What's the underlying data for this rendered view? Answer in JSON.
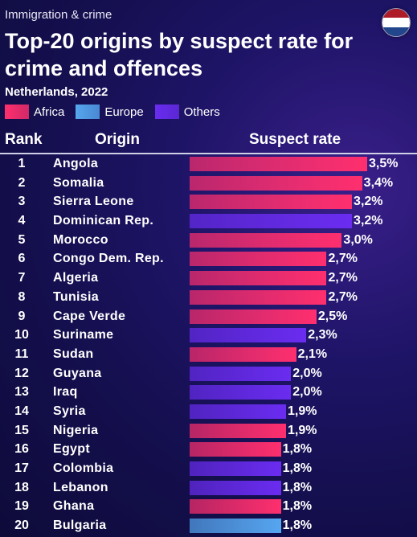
{
  "header": {
    "kicker": "Immigration & crime",
    "title": "Top-20 origins by suspect rate for crime and offences",
    "subtitle": "Netherlands, 2022",
    "flag_icon": "netherlands-flag-icon",
    "flag_colors": [
      "#ae1c28",
      "#ffffff",
      "#21468b"
    ]
  },
  "legend": [
    {
      "label": "Africa",
      "color": "#ff2f6e"
    },
    {
      "label": "Europe",
      "color": "#56a6f0"
    },
    {
      "label": "Others",
      "color": "#6a2cf0"
    }
  ],
  "columns": {
    "rank": "Rank",
    "origin": "Origin",
    "rate": "Suspect rate"
  },
  "chart_data": {
    "type": "bar",
    "orientation": "horizontal",
    "unit": "%",
    "categories": [
      "Angola",
      "Somalia",
      "Sierra Leone",
      "Dominican Rep.",
      "Morocco",
      "Congo Dem. Rep.",
      "Algeria",
      "Tunisia",
      "Cape Verde",
      "Suriname",
      "Sudan",
      "Guyana",
      "Iraq",
      "Syria",
      "Nigeria",
      "Egypt",
      "Colombia",
      "Lebanon",
      "Ghana",
      "Bulgaria"
    ],
    "ranks": [
      "1",
      "2",
      "3",
      "4",
      "5",
      "6",
      "7",
      "8",
      "9",
      "10",
      "11",
      "12",
      "13",
      "14",
      "15",
      "16",
      "17",
      "18",
      "19",
      "20"
    ],
    "values": [
      3.5,
      3.4,
      3.2,
      3.2,
      3.0,
      2.7,
      2.7,
      2.7,
      2.5,
      2.3,
      2.1,
      2.0,
      2.0,
      1.9,
      1.9,
      1.8,
      1.8,
      1.8,
      1.8,
      1.8
    ],
    "value_labels": [
      "3,5%",
      "3,4%",
      "3,2%",
      "3,2%",
      "3,0%",
      "2,7%",
      "2,7%",
      "2,7%",
      "2,5%",
      "2,3%",
      "2,1%",
      "2,0%",
      "2,0%",
      "1,9%",
      "1,9%",
      "1,8%",
      "1,8%",
      "1,8%",
      "1,8%",
      "1,8%"
    ],
    "groups": [
      "Africa",
      "Africa",
      "Africa",
      "Others",
      "Africa",
      "Africa",
      "Africa",
      "Africa",
      "Africa",
      "Others",
      "Africa",
      "Others",
      "Others",
      "Others",
      "Africa",
      "Africa",
      "Others",
      "Others",
      "Africa",
      "Europe"
    ],
    "xlim": [
      0,
      3.5
    ],
    "grid": false
  }
}
